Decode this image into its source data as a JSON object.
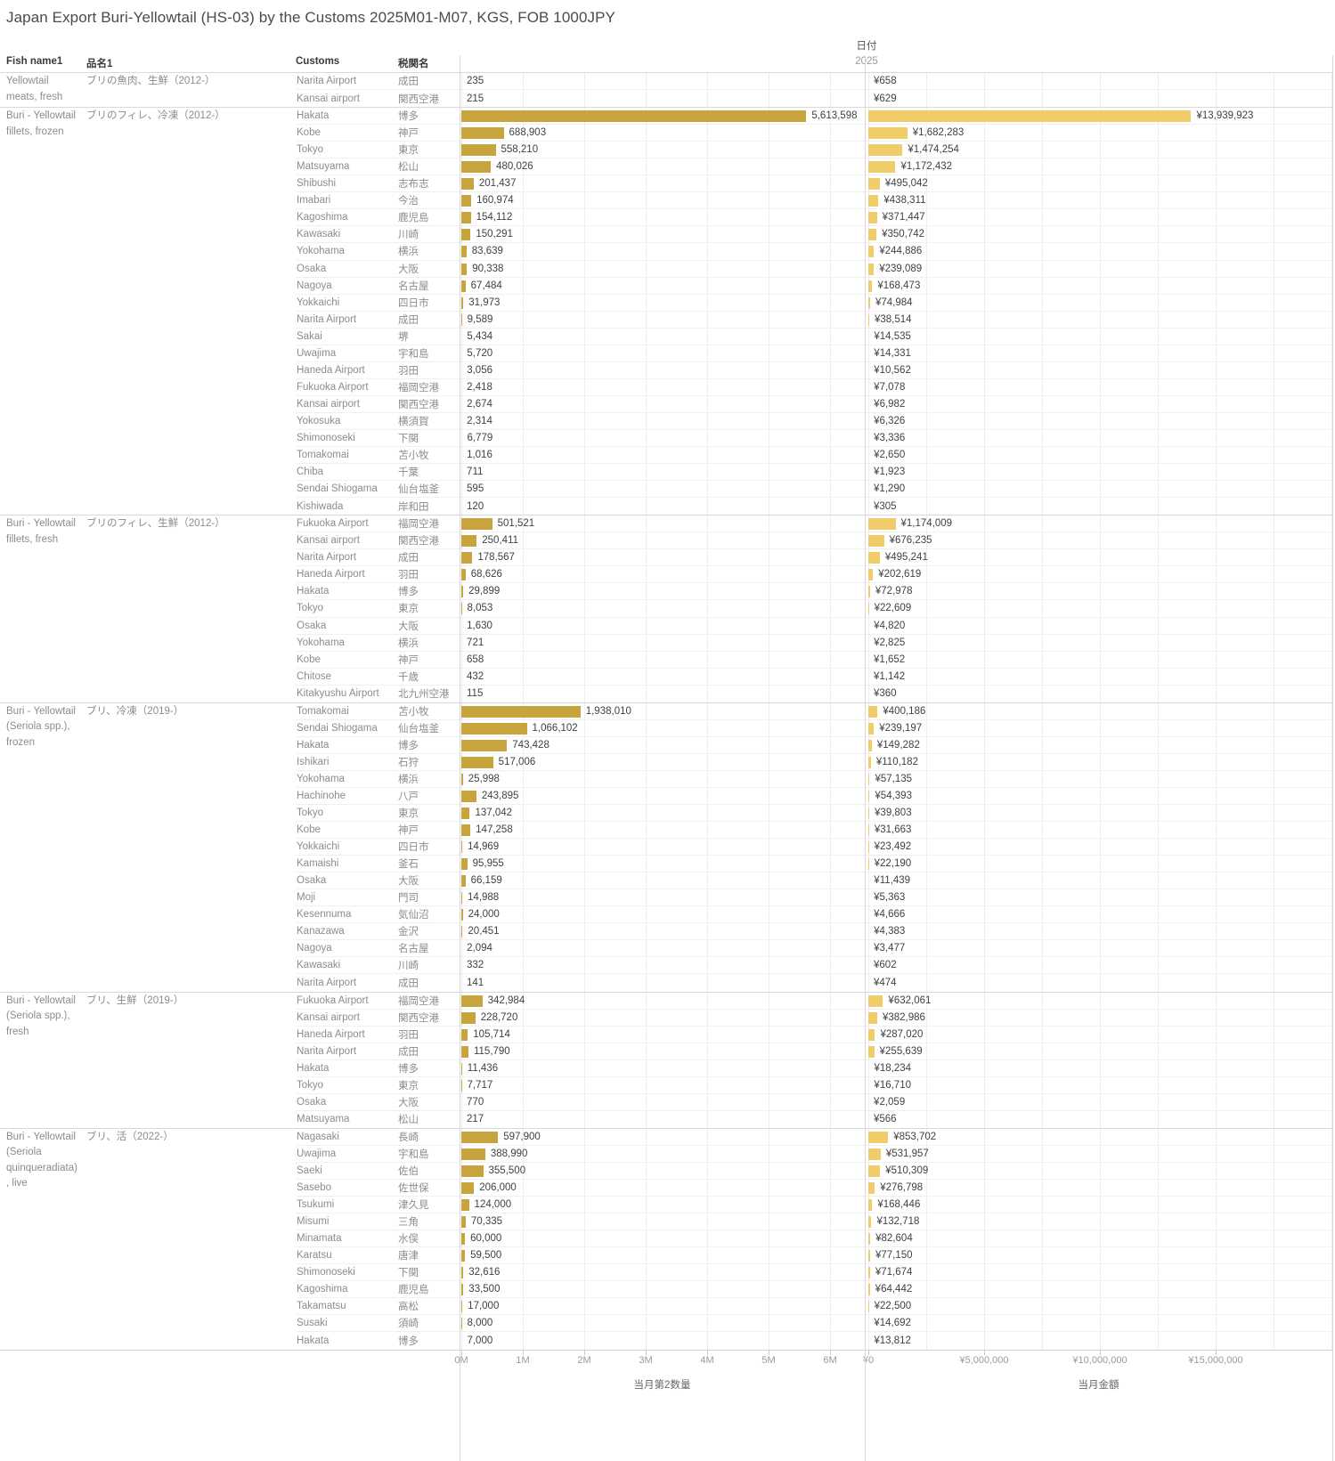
{
  "title": "Japan Export Buri-Yellowtail (HS-03) by the Customs 2025M01-M07, KGS, FOB 1000JPY",
  "headers": {
    "fish_name": "Fish name1",
    "product_ja": "品名1",
    "customs": "Customs",
    "customs_ja": "税関名",
    "date": "日付",
    "year": "2025"
  },
  "axes": {
    "qty": {
      "title": "当月第2数量",
      "ticks": [
        "0M",
        "1M",
        "2M",
        "3M",
        "4M",
        "5M",
        "6M"
      ],
      "tick_interval": 1000000
    },
    "amt": {
      "title": "当月金額",
      "ticks": [
        "¥0",
        "¥5,000,000",
        "¥10,000,000",
        "¥15,000,000"
      ],
      "tick_interval": 5000000
    }
  },
  "colors": {
    "qty_bar": "#c8a43e",
    "amt_bar": "#f0cd69"
  },
  "chart_data": {
    "type": "bar",
    "orientation": "horizontal",
    "quantity_unit": "KGS",
    "amount_unit": "FOB 1000JPY",
    "groups": [
      {
        "fish_name_lines": [
          "Yellowtail",
          "meats, fresh"
        ],
        "product_ja": "ブリの魚肉、生鮮（2012-）",
        "rows": [
          {
            "customs": "Narita Airport",
            "customs_ja": "成田",
            "qty": 235,
            "amt": 658
          },
          {
            "customs": "Kansai airport",
            "customs_ja": "関西空港",
            "qty": 215,
            "amt": 629
          }
        ]
      },
      {
        "fish_name_lines": [
          "Buri - Yellowtail",
          "fillets, frozen"
        ],
        "product_ja": "ブリのフィレ、冷凍（2012-）",
        "rows": [
          {
            "customs": "Hakata",
            "customs_ja": "博多",
            "qty": 5613598,
            "amt": 13939923
          },
          {
            "customs": "Kobe",
            "customs_ja": "神戸",
            "qty": 688903,
            "amt": 1682283
          },
          {
            "customs": "Tokyo",
            "customs_ja": "東京",
            "qty": 558210,
            "amt": 1474254
          },
          {
            "customs": "Matsuyama",
            "customs_ja": "松山",
            "qty": 480026,
            "amt": 1172432
          },
          {
            "customs": "Shibushi",
            "customs_ja": "志布志",
            "qty": 201437,
            "amt": 495042
          },
          {
            "customs": "Imabari",
            "customs_ja": "今治",
            "qty": 160974,
            "amt": 438311
          },
          {
            "customs": "Kagoshima",
            "customs_ja": "鹿児島",
            "qty": 154112,
            "amt": 371447
          },
          {
            "customs": "Kawasaki",
            "customs_ja": "川崎",
            "qty": 150291,
            "amt": 350742
          },
          {
            "customs": "Yokohama",
            "customs_ja": "横浜",
            "qty": 83639,
            "amt": 244886
          },
          {
            "customs": "Osaka",
            "customs_ja": "大阪",
            "qty": 90338,
            "amt": 239089
          },
          {
            "customs": "Nagoya",
            "customs_ja": "名古屋",
            "qty": 67484,
            "amt": 168473
          },
          {
            "customs": "Yokkaichi",
            "customs_ja": "四日市",
            "qty": 31973,
            "amt": 74984
          },
          {
            "customs": "Narita Airport",
            "customs_ja": "成田",
            "qty": 9589,
            "amt": 38514
          },
          {
            "customs": "Sakai",
            "customs_ja": "堺",
            "qty": 5434,
            "amt": 14535
          },
          {
            "customs": "Uwajima",
            "customs_ja": "宇和島",
            "qty": 5720,
            "amt": 14331
          },
          {
            "customs": "Haneda Airport",
            "customs_ja": "羽田",
            "qty": 3056,
            "amt": 10562
          },
          {
            "customs": "Fukuoka Airport",
            "customs_ja": "福岡空港",
            "qty": 2418,
            "amt": 7078
          },
          {
            "customs": "Kansai airport",
            "customs_ja": "関西空港",
            "qty": 2674,
            "amt": 6982
          },
          {
            "customs": "Yokosuka",
            "customs_ja": "横須賀",
            "qty": 2314,
            "amt": 6326
          },
          {
            "customs": "Shimonoseki",
            "customs_ja": "下関",
            "qty": 6779,
            "amt": 3336
          },
          {
            "customs": "Tomakomai",
            "customs_ja": "苫小牧",
            "qty": 1016,
            "amt": 2650
          },
          {
            "customs": "Chiba",
            "customs_ja": "千葉",
            "qty": 711,
            "amt": 1923
          },
          {
            "customs": "Sendai Shiogama",
            "customs_ja": "仙台塩釜",
            "qty": 595,
            "amt": 1290
          },
          {
            "customs": "Kishiwada",
            "customs_ja": "岸和田",
            "qty": 120,
            "amt": 305
          }
        ]
      },
      {
        "fish_name_lines": [
          "Buri - Yellowtail",
          "fillets, fresh"
        ],
        "product_ja": "ブリのフィレ、生鮮（2012-）",
        "rows": [
          {
            "customs": "Fukuoka Airport",
            "customs_ja": "福岡空港",
            "qty": 501521,
            "amt": 1174009
          },
          {
            "customs": "Kansai airport",
            "customs_ja": "関西空港",
            "qty": 250411,
            "amt": 676235
          },
          {
            "customs": "Narita Airport",
            "customs_ja": "成田",
            "qty": 178567,
            "amt": 495241
          },
          {
            "customs": "Haneda Airport",
            "customs_ja": "羽田",
            "qty": 68626,
            "amt": 202619
          },
          {
            "customs": "Hakata",
            "customs_ja": "博多",
            "qty": 29899,
            "amt": 72978
          },
          {
            "customs": "Tokyo",
            "customs_ja": "東京",
            "qty": 8053,
            "amt": 22609
          },
          {
            "customs": "Osaka",
            "customs_ja": "大阪",
            "qty": 1630,
            "amt": 4820
          },
          {
            "customs": "Yokohama",
            "customs_ja": "横浜",
            "qty": 721,
            "amt": 2825
          },
          {
            "customs": "Kobe",
            "customs_ja": "神戸",
            "qty": 658,
            "amt": 1652
          },
          {
            "customs": "Chitose",
            "customs_ja": "千歳",
            "qty": 432,
            "amt": 1142
          },
          {
            "customs": "Kitakyushu Airport",
            "customs_ja": "北九州空港",
            "qty": 115,
            "amt": 360
          }
        ]
      },
      {
        "fish_name_lines": [
          "Buri - Yellowtail",
          "(Seriola spp.),",
          "frozen"
        ],
        "product_ja": "ブリ、冷凍（2019-）",
        "rows": [
          {
            "customs": "Tomakomai",
            "customs_ja": "苫小牧",
            "qty": 1938010,
            "amt": 400186
          },
          {
            "customs": "Sendai Shiogama",
            "customs_ja": "仙台塩釜",
            "qty": 1066102,
            "amt": 239197
          },
          {
            "customs": "Hakata",
            "customs_ja": "博多",
            "qty": 743428,
            "amt": 149282
          },
          {
            "customs": "Ishikari",
            "customs_ja": "石狩",
            "qty": 517006,
            "amt": 110182
          },
          {
            "customs": "Yokohama",
            "customs_ja": "横浜",
            "qty": 25998,
            "amt": 57135
          },
          {
            "customs": "Hachinohe",
            "customs_ja": "八戸",
            "qty": 243895,
            "amt": 54393
          },
          {
            "customs": "Tokyo",
            "customs_ja": "東京",
            "qty": 137042,
            "amt": 39803
          },
          {
            "customs": "Kobe",
            "customs_ja": "神戸",
            "qty": 147258,
            "amt": 31663
          },
          {
            "customs": "Yokkaichi",
            "customs_ja": "四日市",
            "qty": 14969,
            "amt": 23492
          },
          {
            "customs": "Kamaishi",
            "customs_ja": "釜石",
            "qty": 95955,
            "amt": 22190
          },
          {
            "customs": "Osaka",
            "customs_ja": "大阪",
            "qty": 66159,
            "amt": 11439
          },
          {
            "customs": "Moji",
            "customs_ja": "門司",
            "qty": 14988,
            "amt": 5363
          },
          {
            "customs": "Kesennuma",
            "customs_ja": "気仙沼",
            "qty": 24000,
            "amt": 4666
          },
          {
            "customs": "Kanazawa",
            "customs_ja": "金沢",
            "qty": 20451,
            "amt": 4383
          },
          {
            "customs": "Nagoya",
            "customs_ja": "名古屋",
            "qty": 2094,
            "amt": 3477
          },
          {
            "customs": "Kawasaki",
            "customs_ja": "川崎",
            "qty": 332,
            "amt": 602
          },
          {
            "customs": "Narita Airport",
            "customs_ja": "成田",
            "qty": 141,
            "amt": 474
          }
        ]
      },
      {
        "fish_name_lines": [
          "Buri - Yellowtail",
          "(Seriola spp.),",
          "fresh"
        ],
        "product_ja": "ブリ、生鮮（2019-）",
        "rows": [
          {
            "customs": "Fukuoka Airport",
            "customs_ja": "福岡空港",
            "qty": 342984,
            "amt": 632061
          },
          {
            "customs": "Kansai airport",
            "customs_ja": "関西空港",
            "qty": 228720,
            "amt": 382986
          },
          {
            "customs": "Haneda Airport",
            "customs_ja": "羽田",
            "qty": 105714,
            "amt": 287020
          },
          {
            "customs": "Narita Airport",
            "customs_ja": "成田",
            "qty": 115790,
            "amt": 255639
          },
          {
            "customs": "Hakata",
            "customs_ja": "博多",
            "qty": 11436,
            "amt": 18234
          },
          {
            "customs": "Tokyo",
            "customs_ja": "東京",
            "qty": 7717,
            "amt": 16710
          },
          {
            "customs": "Osaka",
            "customs_ja": "大阪",
            "qty": 770,
            "amt": 2059
          },
          {
            "customs": "Matsuyama",
            "customs_ja": "松山",
            "qty": 217,
            "amt": 566
          }
        ]
      },
      {
        "fish_name_lines": [
          "Buri - Yellowtail",
          "(Seriola",
          "quinqueradiata)",
          ", live"
        ],
        "product_ja": "ブリ、活（2022-）",
        "rows": [
          {
            "customs": "Nagasaki",
            "customs_ja": "長崎",
            "qty": 597900,
            "amt": 853702
          },
          {
            "customs": "Uwajima",
            "customs_ja": "宇和島",
            "qty": 388990,
            "amt": 531957
          },
          {
            "customs": "Saeki",
            "customs_ja": "佐伯",
            "qty": 355500,
            "amt": 510309
          },
          {
            "customs": "Sasebo",
            "customs_ja": "佐世保",
            "qty": 206000,
            "amt": 276798
          },
          {
            "customs": "Tsukumi",
            "customs_ja": "津久見",
            "qty": 124000,
            "amt": 168446
          },
          {
            "customs": "Misumi",
            "customs_ja": "三角",
            "qty": 70335,
            "amt": 132718
          },
          {
            "customs": "Minamata",
            "customs_ja": "水俣",
            "qty": 60000,
            "amt": 82604
          },
          {
            "customs": "Karatsu",
            "customs_ja": "唐津",
            "qty": 59500,
            "amt": 77150
          },
          {
            "customs": "Shimonoseki",
            "customs_ja": "下関",
            "qty": 32616,
            "amt": 71674
          },
          {
            "customs": "Kagoshima",
            "customs_ja": "鹿児島",
            "qty": 33500,
            "amt": 64442
          },
          {
            "customs": "Takamatsu",
            "customs_ja": "高松",
            "qty": 17000,
            "amt": 22500
          },
          {
            "customs": "Susaki",
            "customs_ja": "須崎",
            "qty": 8000,
            "amt": 14692
          },
          {
            "customs": "Hakata",
            "customs_ja": "博多",
            "qty": 7000,
            "amt": 13812
          }
        ]
      }
    ]
  }
}
